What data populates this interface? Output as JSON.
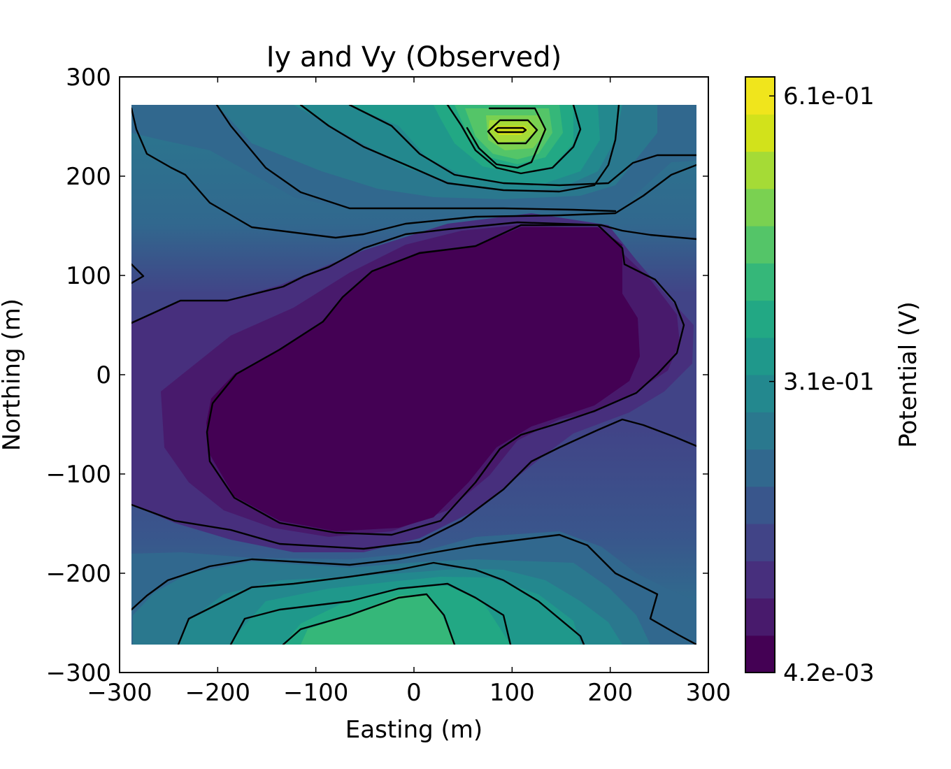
{
  "chart_data": {
    "type": "heatmap",
    "subtype": "filled-contour",
    "title": "Iy and Vy (Observed)",
    "xlabel": "Easting (m)",
    "ylabel": "Northing (m)",
    "xlim": [
      -300,
      300
    ],
    "ylim": [
      -300,
      300
    ],
    "data_extent": {
      "x": [
        -290,
        290
      ],
      "y": [
        -275,
        275
      ]
    },
    "x_ticks": [
      -300,
      -200,
      -100,
      0,
      100,
      200,
      300
    ],
    "y_ticks": [
      -300,
      -200,
      -100,
      0,
      100,
      200,
      300
    ],
    "x_tick_labels": [
      "−300",
      "−200",
      "−100",
      "0",
      "100",
      "200",
      "300"
    ],
    "y_tick_labels": [
      "−300",
      "−200",
      "−100",
      "0",
      "100",
      "200",
      "300"
    ],
    "colormap": "viridis",
    "contour_line_color": "#000000",
    "colorbar": {
      "label": "Potential (V)",
      "min": 0.0042,
      "max": 0.63,
      "levels": 20,
      "ticks": [
        {
          "value": 0.0042,
          "label": "4.2e-03"
        },
        {
          "value": 0.31,
          "label": "3.1e-01"
        },
        {
          "value": 0.61,
          "label": "6.1e-01"
        }
      ],
      "colors": [
        "#440154",
        "#481a6c",
        "#472f7d",
        "#414487",
        "#39568c",
        "#31688e",
        "#2a788e",
        "#23888e",
        "#1f988b",
        "#22a884",
        "#35b779",
        "#54c568",
        "#7ad151",
        "#a5db36",
        "#d2e21b",
        "#f0e51c"
      ]
    },
    "approx_grid": {
      "x": [
        -290,
        -210,
        -130,
        -50,
        30,
        110,
        190,
        270
      ],
      "y": [
        275,
        225,
        175,
        125,
        75,
        25,
        -25,
        -75,
        -125,
        -175,
        -225,
        -275
      ],
      "values": [
        [
          0.24,
          0.26,
          0.3,
          0.37,
          0.45,
          0.52,
          0.35,
          0.27
        ],
        [
          0.23,
          0.25,
          0.29,
          0.37,
          0.46,
          0.58,
          0.38,
          0.26
        ],
        [
          0.2,
          0.21,
          0.24,
          0.27,
          0.3,
          0.33,
          0.29,
          0.23
        ],
        [
          0.16,
          0.15,
          0.12,
          0.1,
          0.06,
          0.03,
          0.05,
          0.17
        ],
        [
          0.14,
          0.12,
          0.08,
          0.05,
          0.03,
          0.01,
          0.02,
          0.12
        ],
        [
          0.13,
          0.1,
          0.06,
          0.03,
          0.01,
          0.01,
          0.03,
          0.1
        ],
        [
          0.12,
          0.08,
          0.04,
          0.01,
          0.01,
          0.03,
          0.06,
          0.11
        ],
        [
          0.12,
          0.07,
          0.02,
          0.01,
          0.02,
          0.05,
          0.09,
          0.13
        ],
        [
          0.14,
          0.08,
          0.04,
          0.03,
          0.05,
          0.08,
          0.12,
          0.15
        ],
        [
          0.19,
          0.16,
          0.14,
          0.15,
          0.17,
          0.18,
          0.18,
          0.17
        ],
        [
          0.24,
          0.27,
          0.3,
          0.33,
          0.31,
          0.27,
          0.24,
          0.21
        ],
        [
          0.25,
          0.28,
          0.33,
          0.37,
          0.35,
          0.29,
          0.25,
          0.22
        ]
      ]
    }
  }
}
